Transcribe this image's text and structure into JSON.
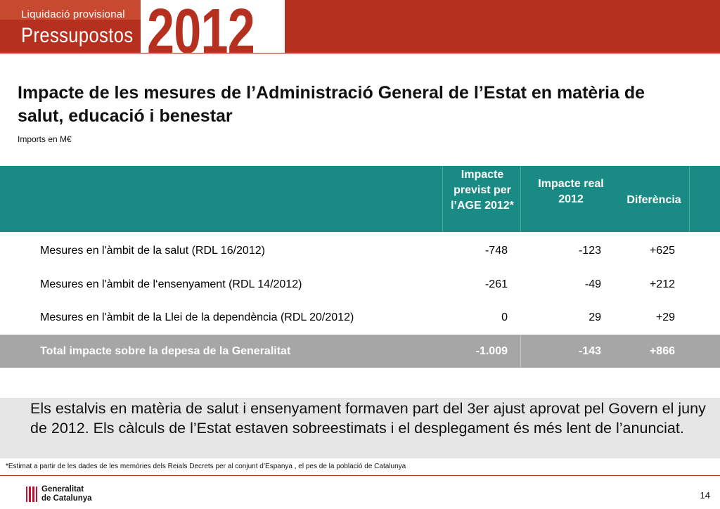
{
  "header": {
    "subtitle": "Liquidació provisional",
    "title": "Pressupostos",
    "year": "2012"
  },
  "page": {
    "title": "Impacte de les mesures de l’Administració General de l’Estat en matèria de salut, educació i benestar",
    "units": "Imports en M€"
  },
  "table": {
    "headers": [
      "Impacte previst per l’AGE 2012*",
      "Impacte real 2012",
      "Diferència"
    ],
    "rows": [
      {
        "label": "Mesures en l'àmbit de la salut  (RDL 16/2012)",
        "previst": "-748",
        "real": "-123",
        "diferencia": "+625"
      },
      {
        "label": "Mesures en l'àmbit de l‘ensenyament (RDL 14/2012)",
        "previst": "-261",
        "real": "-49",
        "diferencia": "+212"
      },
      {
        "label": "Mesures en l'àmbit de la Llei de la dependència (RDL 20/2012)",
        "previst": "0",
        "real": "29",
        "diferencia": "+29"
      }
    ],
    "total": {
      "label": "Total impacte sobre la depesa de la Generalitat",
      "previst": "-1.009",
      "real": "-143",
      "diferencia": "+866"
    }
  },
  "note": "Els estalvis en matèria de salut i ensenyament formaven part del 3er ajust aprovat pel Govern el juny de 2012. Els càlculs de l’Estat estaven sobreestimats i el desplegament és més lent de l’anunciat.",
  "footnote": "*Estimat a partir de les dades de les memòries dels Reials Decrets per al conjunt d’Espanya , el pes de la població de Catalunya",
  "footer": {
    "logo_line1": "Generalitat",
    "logo_line2": "de Catalunya",
    "page_number": "14"
  },
  "colors": {
    "brand_red": "#b5301f",
    "table_header": "#1a8a84",
    "total_row": "#a6a6a6",
    "note_bg": "#e6e6e6"
  }
}
